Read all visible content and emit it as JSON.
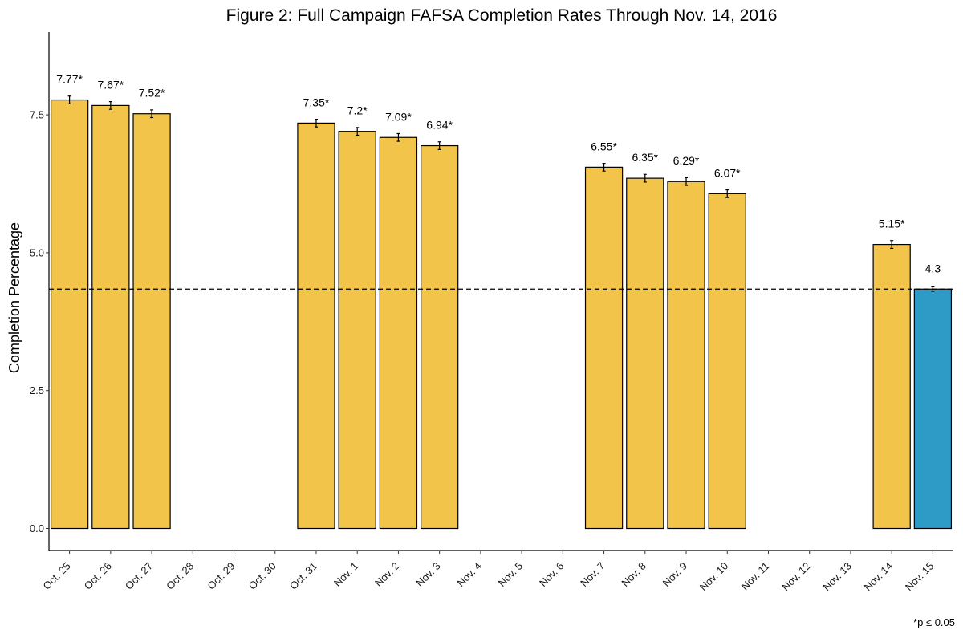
{
  "chart_data": {
    "type": "bar",
    "title": "Figure 2: Full Campaign FAFSA Completion Rates Through Nov. 14, 2016",
    "xlabel": "",
    "ylabel": "Completion Percentage",
    "ylim": [
      -0.4,
      9.0
    ],
    "yticks": [
      "0.0",
      "2.5",
      "5.0",
      "7.5"
    ],
    "ytick_values": [
      0,
      2.5,
      5.0,
      7.5
    ],
    "categories": [
      "Oct. 25",
      "Oct. 26",
      "Oct. 27",
      "Oct. 28",
      "Oct. 29",
      "Oct. 30",
      "Oct. 31",
      "Nov. 1",
      "Nov. 2",
      "Nov. 3",
      "Nov. 4",
      "Nov. 5",
      "Nov. 6",
      "Nov. 7",
      "Nov. 8",
      "Nov. 9",
      "Nov. 10",
      "Nov. 11",
      "Nov. 12",
      "Nov. 13",
      "Nov. 14",
      "Nov. 15"
    ],
    "values": [
      7.77,
      7.67,
      7.52,
      null,
      null,
      null,
      7.35,
      7.2,
      7.09,
      6.94,
      null,
      null,
      null,
      6.55,
      6.35,
      6.29,
      6.07,
      null,
      null,
      null,
      5.15,
      4.34
    ],
    "error": [
      0.07,
      0.07,
      0.07,
      null,
      null,
      null,
      0.07,
      0.07,
      0.07,
      0.07,
      null,
      null,
      null,
      0.07,
      0.07,
      0.07,
      0.07,
      null,
      null,
      null,
      0.07,
      0.04
    ],
    "data_labels": [
      "7.77*",
      "7.67*",
      "7.52*",
      "",
      "",
      "",
      "7.35*",
      "7.2*",
      "7.09*",
      "6.94*",
      "",
      "",
      "",
      "6.55*",
      "6.35*",
      "6.29*",
      "6.07*",
      "",
      "",
      "",
      "5.15*",
      "4.3"
    ],
    "reference_line": 4.34,
    "reference_line_style": "dashed",
    "colors": {
      "bar": "#F2C44A",
      "highlight": "#2E9BC6",
      "outline": "#000000"
    },
    "highlight_category": "Nov. 15",
    "grid": false,
    "footnote": "*p ≤ 0.05"
  }
}
